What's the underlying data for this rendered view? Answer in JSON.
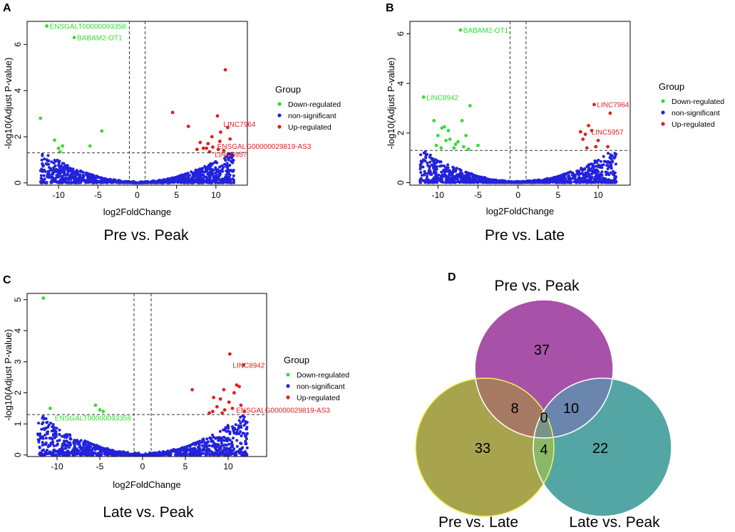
{
  "chart_data": [
    {
      "type": "scatter",
      "panel": "A",
      "caption": "Pre vs. Peak",
      "xlabel": "log2FoldChange",
      "ylabel": "-log10(Adjust P-value)",
      "xlim": [
        -14,
        14
      ],
      "ylim": [
        -0.1,
        7.0
      ],
      "xticks": [
        -10,
        -5,
        0,
        5,
        10
      ],
      "yticks": [
        0,
        2,
        4,
        6
      ],
      "hline": 1.3,
      "vlines": [
        -1,
        1
      ],
      "legend": {
        "title": "Group",
        "entries": [
          {
            "label": "Down-regulated",
            "color": "#33dd33"
          },
          {
            "label": "non-significant",
            "color": "#2222dd"
          },
          {
            "label": "Up-regulated",
            "color": "#dd2222"
          }
        ]
      },
      "down_points": [
        [
          -11.5,
          6.8
        ],
        [
          -8,
          6.3
        ],
        [
          -12.3,
          2.8
        ],
        [
          -10.5,
          1.85
        ],
        [
          -9.5,
          1.6
        ],
        [
          -10,
          1.5
        ],
        [
          -4.5,
          2.25
        ],
        [
          -6,
          1.6
        ],
        [
          -9.8,
          1.35
        ]
      ],
      "up_points": [
        [
          11.2,
          4.9
        ],
        [
          4.5,
          3.05
        ],
        [
          10.2,
          2.9
        ],
        [
          6.5,
          2.45
        ],
        [
          11.5,
          2.4
        ],
        [
          10.6,
          2.2
        ],
        [
          9.5,
          2.0
        ],
        [
          10.5,
          1.8
        ],
        [
          11.8,
          1.9
        ],
        [
          9,
          1.7
        ],
        [
          8,
          1.75
        ],
        [
          9.6,
          1.55
        ],
        [
          10.3,
          1.45
        ],
        [
          8.8,
          1.5
        ],
        [
          7.6,
          1.45
        ],
        [
          9.2,
          1.35
        ],
        [
          11,
          1.4
        ],
        [
          8.4,
          1.5
        ]
      ],
      "labels": [
        {
          "text": "ENSGALT00000093358",
          "color": "#33dd33",
          "x": -11.5,
          "y": 6.8
        },
        {
          "text": "BABAM2-OT1",
          "color": "#33dd33",
          "x": -8,
          "y": 6.3
        },
        {
          "text": "LINC7964",
          "color": "#dd2222",
          "x": 10.6,
          "y": 2.55
        },
        {
          "text": "ENSGALG00000029819-AS3",
          "color": "#dd2222",
          "x": 9.8,
          "y": 1.6
        },
        {
          "text": "LINC5957",
          "color": "#dd2222",
          "x": 9.5,
          "y": 1.25
        }
      ]
    },
    {
      "type": "scatter",
      "panel": "B",
      "caption": "Pre vs. Late",
      "xlabel": "log2FoldChange",
      "ylabel": "-log10(Adjust P-value)",
      "xlim": [
        -13.5,
        14
      ],
      "ylim": [
        -0.1,
        6.5
      ],
      "xticks": [
        -10,
        -5,
        0,
        5,
        10
      ],
      "yticks": [
        0,
        2,
        4,
        6
      ],
      "hline": 1.3,
      "vlines": [
        -1,
        1
      ],
      "legend": {
        "title": "Group",
        "entries": [
          {
            "label": "Down-regulated",
            "color": "#33dd33"
          },
          {
            "label": "non-significant",
            "color": "#2222dd"
          },
          {
            "label": "Up-regulated",
            "color": "#dd2222"
          }
        ]
      },
      "down_points": [
        [
          -7.2,
          6.15
        ],
        [
          -11.8,
          3.45
        ],
        [
          -6,
          3.1
        ],
        [
          -10.5,
          2.5
        ],
        [
          -7,
          2.5
        ],
        [
          -9.5,
          2.2
        ],
        [
          -8.7,
          2.1
        ],
        [
          -9.2,
          2.25
        ],
        [
          -10,
          1.9
        ],
        [
          -6.5,
          1.9
        ],
        [
          -9,
          1.7
        ],
        [
          -7.5,
          1.65
        ],
        [
          -8.5,
          1.75
        ],
        [
          -10.2,
          1.5
        ],
        [
          -5,
          1.5
        ],
        [
          -7.8,
          1.55
        ],
        [
          -6.8,
          1.45
        ],
        [
          -9.6,
          1.4
        ],
        [
          -8,
          1.4
        ],
        [
          -6.2,
          1.35
        ]
      ],
      "up_points": [
        [
          9.5,
          3.15
        ],
        [
          11.5,
          2.8
        ],
        [
          8.8,
          2.3
        ],
        [
          7.8,
          2.05
        ],
        [
          9.2,
          2.1
        ],
        [
          8.4,
          1.95
        ],
        [
          10,
          1.7
        ],
        [
          8.1,
          1.75
        ],
        [
          11.2,
          1.45
        ],
        [
          9.7,
          1.45
        ],
        [
          8.6,
          1.4
        ]
      ],
      "labels": [
        {
          "text": "BABAM2-OT1",
          "color": "#33dd33",
          "x": -7.2,
          "y": 6.15
        },
        {
          "text": "LINC8942",
          "color": "#33dd33",
          "x": -11.8,
          "y": 3.45
        },
        {
          "text": "LINC7964",
          "color": "#dd2222",
          "x": 9.5,
          "y": 3.15
        },
        {
          "text": "LINC5957",
          "color": "#dd2222",
          "x": 8.8,
          "y": 2.05
        }
      ]
    },
    {
      "type": "scatter",
      "panel": "C",
      "caption": "Late vs. Peak",
      "xlabel": "log2FoldChange",
      "ylabel": "-log10(Adjust P-value)",
      "xlim": [
        -13.5,
        14.5
      ],
      "ylim": [
        -0.05,
        5.2
      ],
      "xticks": [
        -10,
        -5,
        0,
        5,
        10
      ],
      "yticks": [
        0,
        1,
        2,
        3,
        4,
        5
      ],
      "hline": 1.3,
      "vlines": [
        -1,
        1
      ],
      "legend": {
        "title": "Group",
        "entries": [
          {
            "label": "Down-regulated",
            "color": "#33dd33"
          },
          {
            "label": "non-significant",
            "color": "#2222dd"
          },
          {
            "label": "Up-regulated",
            "color": "#dd2222"
          }
        ]
      },
      "down_points": [
        [
          -11.6,
          5.05
        ],
        [
          -10.8,
          1.5
        ],
        [
          -5.5,
          1.6
        ],
        [
          -5,
          1.45
        ],
        [
          -4.6,
          1.4
        ]
      ],
      "up_points": [
        [
          10.2,
          3.25
        ],
        [
          11.8,
          2.9
        ],
        [
          11,
          2.25
        ],
        [
          11.3,
          2.2
        ],
        [
          5.8,
          2.1
        ],
        [
          9.5,
          2.1
        ],
        [
          10.7,
          2.0
        ],
        [
          8.3,
          1.85
        ],
        [
          9.1,
          1.8
        ],
        [
          10.1,
          1.7
        ],
        [
          11.5,
          1.6
        ],
        [
          8.7,
          1.55
        ],
        [
          9.6,
          1.45
        ],
        [
          10.5,
          1.5
        ],
        [
          8.2,
          1.4
        ],
        [
          11.9,
          1.4
        ],
        [
          9.3,
          1.35
        ],
        [
          7.8,
          1.35
        ]
      ],
      "labels": [
        {
          "text": "LINC8942",
          "color": "#dd2222",
          "x": 10.2,
          "y": 2.9
        },
        {
          "text": "ENSGALT00000093358",
          "color": "#33dd33",
          "x": -10.6,
          "y": 1.2
        },
        {
          "text": "ENSGALG00000029819-AS3",
          "color": "#dd2222",
          "x": 10.6,
          "y": 1.45
        }
      ]
    },
    {
      "type": "venn",
      "panel": "D",
      "sets": [
        {
          "name": "Pre vs. Peak",
          "color": "#a752a8",
          "only": 37
        },
        {
          "name": "Pre vs. Late",
          "color": "#a8a44e",
          "only": 33
        },
        {
          "name": "Late vs. Peak",
          "color": "#53a6a4",
          "only": 22
        }
      ],
      "overlaps": {
        "peak_late": 8,
        "peak_latepeak": 10,
        "late_latepeak": 4,
        "all_three": 0
      },
      "overlap_colors": {
        "peak_late": "#a67a62",
        "peak_latepeak": "#6a86ae",
        "late_latepeak": "#8ab866",
        "all_three": "#7b948a"
      }
    }
  ]
}
